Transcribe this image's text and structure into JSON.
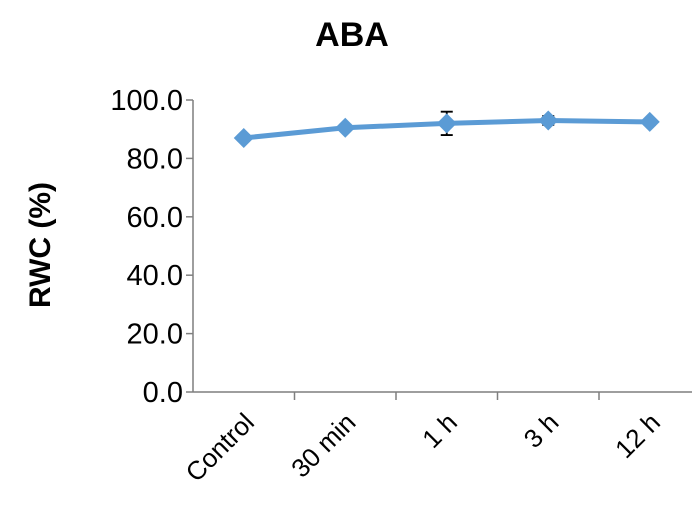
{
  "chart_data": {
    "type": "line",
    "title": "ABA",
    "xlabel": "",
    "ylabel": "RWC (%)",
    "categories": [
      "Control",
      "30 min",
      "1 h",
      "3 h",
      "12 h"
    ],
    "series": [
      {
        "values": [
          87.0,
          90.5,
          92.0,
          93.0,
          92.5
        ],
        "errors": [
          1.0,
          1.0,
          4.0,
          1.5,
          1.0
        ],
        "color": "#5b9bd5"
      }
    ],
    "ylim": [
      0,
      100
    ],
    "yticks": [
      "0.0",
      "20.0",
      "40.0",
      "60.0",
      "80.0",
      "100.0"
    ],
    "grid": false,
    "legend": "none",
    "marker": "diamond"
  }
}
